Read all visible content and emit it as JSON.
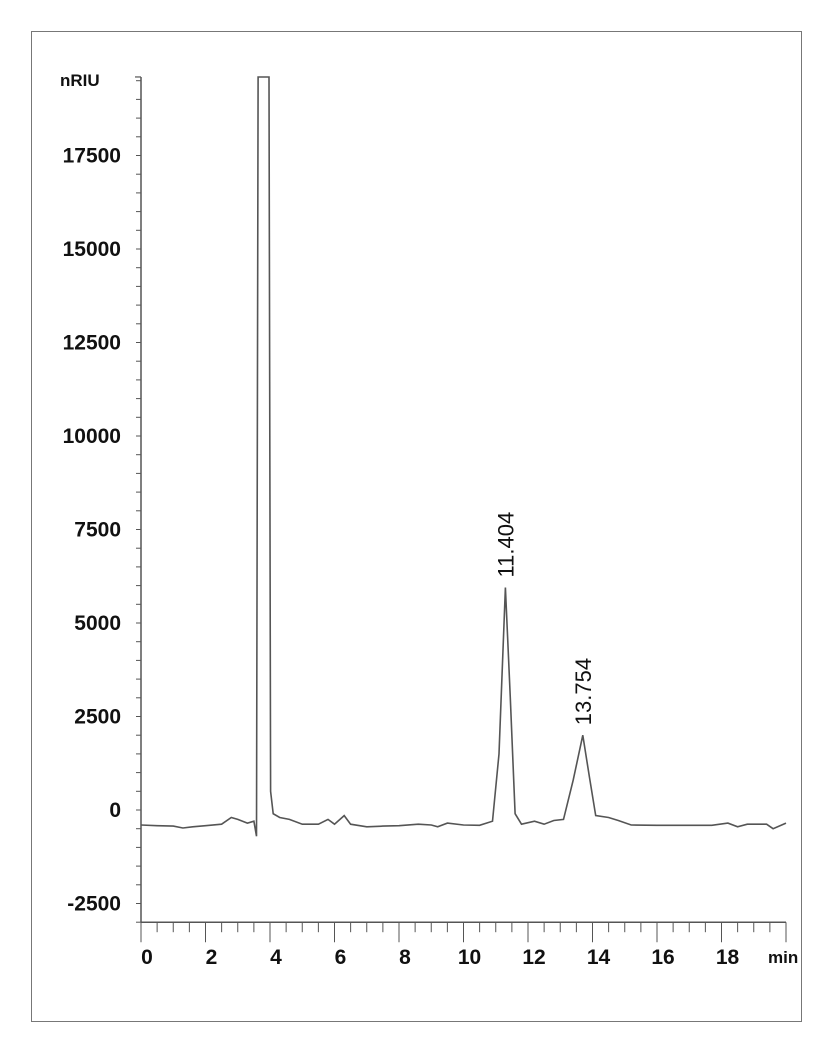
{
  "chart_data": {
    "type": "line",
    "title": "",
    "xlabel": "min",
    "ylabel": "nRIU",
    "xlim": [
      0,
      20
    ],
    "ylim": [
      -3000,
      19600
    ],
    "x_ticks": [
      0,
      2,
      4,
      6,
      8,
      10,
      12,
      14,
      16,
      18
    ],
    "x_minor_step": 0.5,
    "y_ticks": [
      -2500,
      0,
      2500,
      5000,
      7500,
      10000,
      12500,
      15000,
      17500
    ],
    "y_minor_step": 500,
    "grid": false,
    "line_color": "#555555",
    "peak_labels": [
      {
        "text": "11.404",
        "x": 11.3,
        "y": 5950
      },
      {
        "text": "13.754",
        "x": 13.7,
        "y": 2000
      }
    ],
    "series": [
      {
        "points": [
          [
            0,
            -400
          ],
          [
            0.5,
            -420
          ],
          [
            1.0,
            -430
          ],
          [
            1.3,
            -480
          ],
          [
            1.6,
            -450
          ],
          [
            2.0,
            -420
          ],
          [
            2.5,
            -380
          ],
          [
            2.8,
            -200
          ],
          [
            3.0,
            -250
          ],
          [
            3.3,
            -350
          ],
          [
            3.5,
            -300
          ],
          [
            3.58,
            -700
          ],
          [
            3.63,
            19600
          ],
          [
            3.97,
            19600
          ],
          [
            4.02,
            500
          ],
          [
            4.1,
            -100
          ],
          [
            4.3,
            -200
          ],
          [
            4.6,
            -250
          ],
          [
            5.0,
            -380
          ],
          [
            5.5,
            -380
          ],
          [
            5.8,
            -250
          ],
          [
            6.0,
            -380
          ],
          [
            6.3,
            -150
          ],
          [
            6.5,
            -380
          ],
          [
            7.0,
            -450
          ],
          [
            7.5,
            -430
          ],
          [
            8.0,
            -420
          ],
          [
            8.6,
            -380
          ],
          [
            9.0,
            -400
          ],
          [
            9.2,
            -450
          ],
          [
            9.5,
            -350
          ],
          [
            10.0,
            -400
          ],
          [
            10.5,
            -410
          ],
          [
            10.9,
            -300
          ],
          [
            11.1,
            1500
          ],
          [
            11.3,
            5950
          ],
          [
            11.45,
            3000
          ],
          [
            11.6,
            -100
          ],
          [
            11.8,
            -380
          ],
          [
            12.2,
            -300
          ],
          [
            12.5,
            -380
          ],
          [
            12.8,
            -280
          ],
          [
            13.1,
            -250
          ],
          [
            13.4,
            800
          ],
          [
            13.7,
            2000
          ],
          [
            13.9,
            900
          ],
          [
            14.1,
            -150
          ],
          [
            14.5,
            -200
          ],
          [
            14.8,
            -280
          ],
          [
            15.2,
            -400
          ],
          [
            16.0,
            -410
          ],
          [
            17.0,
            -410
          ],
          [
            17.7,
            -410
          ],
          [
            18.2,
            -350
          ],
          [
            18.5,
            -450
          ],
          [
            18.8,
            -380
          ],
          [
            19.4,
            -380
          ],
          [
            19.6,
            -500
          ],
          [
            20.0,
            -350
          ]
        ]
      }
    ]
  }
}
